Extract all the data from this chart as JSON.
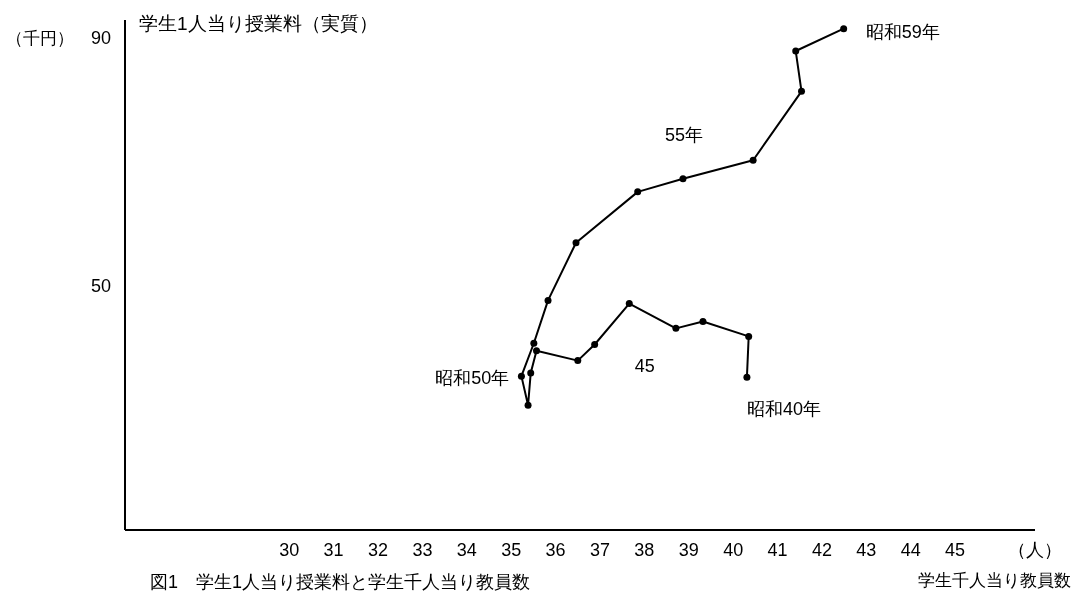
{
  "chart_data": {
    "type": "line",
    "title": "学生1人当り授業料（実質）",
    "ylabel": "（千円）",
    "xlabel": "学生千人当り教員数",
    "x": [
      40.31,
      40.35,
      39.32,
      38.71,
      37.66,
      36.88,
      36.5,
      35.57,
      35.44,
      35.38,
      35.23,
      35.51,
      35.83,
      36.46,
      37.85,
      38.87,
      40.45,
      41.54,
      41.41,
      42.49
    ],
    "series": [
      {
        "color": "#000000",
        "values": [
          35.1,
          41.7,
          44.1,
          43.0,
          47.0,
          40.4,
          37.8,
          39.4,
          35.8,
          30.6,
          35.3,
          40.6,
          47.5,
          56.8,
          65.0,
          67.1,
          70.1,
          81.2,
          87.7,
          91.3
        ]
      }
    ],
    "xlim": [
      26.3,
      46.8
    ],
    "ylim": [
      10.5,
      92.7
    ],
    "xticks": [
      30,
      31,
      32,
      33,
      34,
      35,
      36,
      37,
      38,
      39,
      40,
      41,
      42,
      43,
      44,
      45
    ],
    "yticks": [
      50,
      90
    ],
    "marker": "circle",
    "line_style": "solid",
    "grid": false,
    "annotations": [
      {
        "text": "昭和40年",
        "x": 40.31,
        "y": 35.1
      },
      {
        "text": "45",
        "x": 36.88,
        "y": 40.4
      },
      {
        "text": "昭和50年",
        "x": 35.23,
        "y": 35.3
      },
      {
        "text": "55年",
        "x": 38.87,
        "y": 67.1
      },
      {
        "text": "昭和59年",
        "x": 42.49,
        "y": 91.3
      },
      "（人）",
      "図1　学生1人当り授業料と学生千人当り教員数"
    ]
  }
}
